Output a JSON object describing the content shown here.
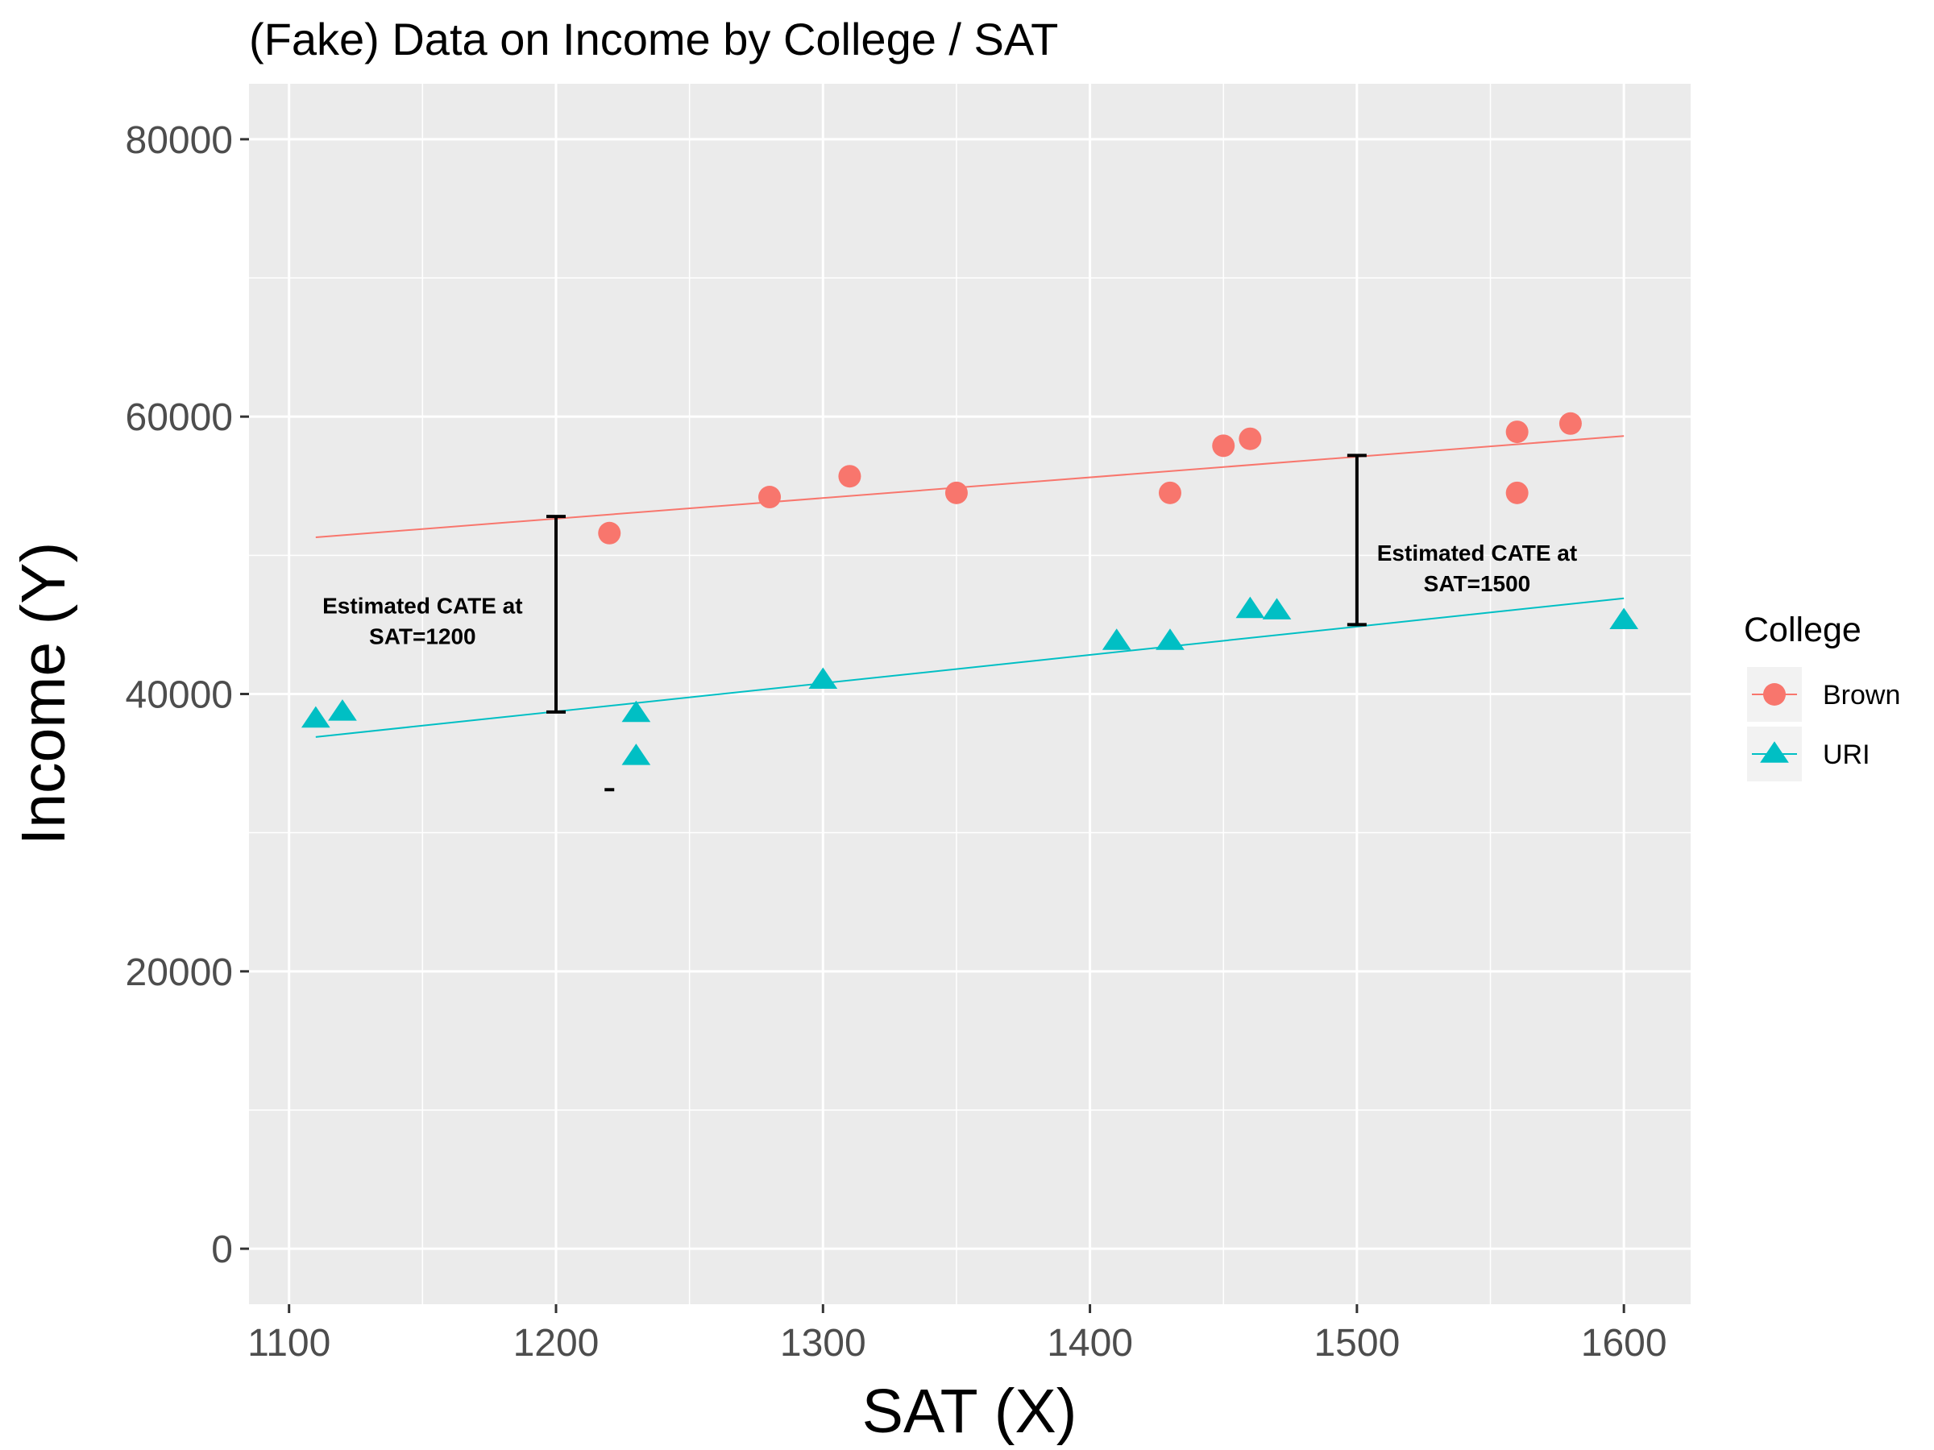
{
  "chart_data": {
    "type": "scatter",
    "title": "(Fake) Data on Income by College / SAT",
    "xlabel": "SAT (X)",
    "ylabel": "Income (Y)",
    "xlim": [
      1085,
      1625
    ],
    "ylim": [
      -4000,
      84000
    ],
    "x_ticks": [
      1100,
      1200,
      1300,
      1400,
      1500,
      1600
    ],
    "y_ticks": [
      0,
      20000,
      40000,
      60000,
      80000
    ],
    "x_tick_labels": [
      "1100",
      "1200",
      "1300",
      "1400",
      "1500",
      "1600"
    ],
    "y_tick_labels": [
      "0",
      "20000",
      "40000",
      "60000",
      "80000"
    ],
    "grid": true,
    "legend_title": "College",
    "legend_position": "right",
    "series": [
      {
        "name": "Brown",
        "color": "#F8766D",
        "marker": "circle",
        "points": [
          {
            "x": 1220,
            "y": 51600
          },
          {
            "x": 1280,
            "y": 54200
          },
          {
            "x": 1310,
            "y": 55700
          },
          {
            "x": 1350,
            "y": 54500
          },
          {
            "x": 1430,
            "y": 54500
          },
          {
            "x": 1450,
            "y": 57900
          },
          {
            "x": 1460,
            "y": 58400
          },
          {
            "x": 1560,
            "y": 58900
          },
          {
            "x": 1560,
            "y": 54500
          },
          {
            "x": 1580,
            "y": 59500
          }
        ],
        "fit_line": {
          "x": [
            1110,
            1600
          ],
          "y": [
            51300,
            58600
          ]
        }
      },
      {
        "name": "URI",
        "color": "#00BFC4",
        "marker": "triangle",
        "points": [
          {
            "x": 1110,
            "y": 38200
          },
          {
            "x": 1120,
            "y": 38700
          },
          {
            "x": 1230,
            "y": 38600
          },
          {
            "x": 1230,
            "y": 35500
          },
          {
            "x": 1300,
            "y": 41000
          },
          {
            "x": 1410,
            "y": 43800
          },
          {
            "x": 1430,
            "y": 43800
          },
          {
            "x": 1460,
            "y": 46100
          },
          {
            "x": 1470,
            "y": 46000
          },
          {
            "x": 1600,
            "y": 45300
          }
        ],
        "fit_line": {
          "x": [
            1110,
            1600
          ],
          "y": [
            36900,
            46900
          ]
        }
      }
    ],
    "error_bars": [
      {
        "x": 1200,
        "y_low": 38700,
        "y_high": 52800
      },
      {
        "x": 1500,
        "y_low": 45000,
        "y_high": 57200
      }
    ],
    "stray_marks": [
      {
        "x": 1220,
        "y": 33100
      }
    ],
    "annotations": [
      {
        "lines": [
          "Estimated CATE at",
          "SAT=1200"
        ],
        "x": 1150,
        "y": 45800
      },
      {
        "lines": [
          "Estimated CATE at",
          "SAT=1500"
        ],
        "x": 1545,
        "y": 49600
      }
    ]
  }
}
